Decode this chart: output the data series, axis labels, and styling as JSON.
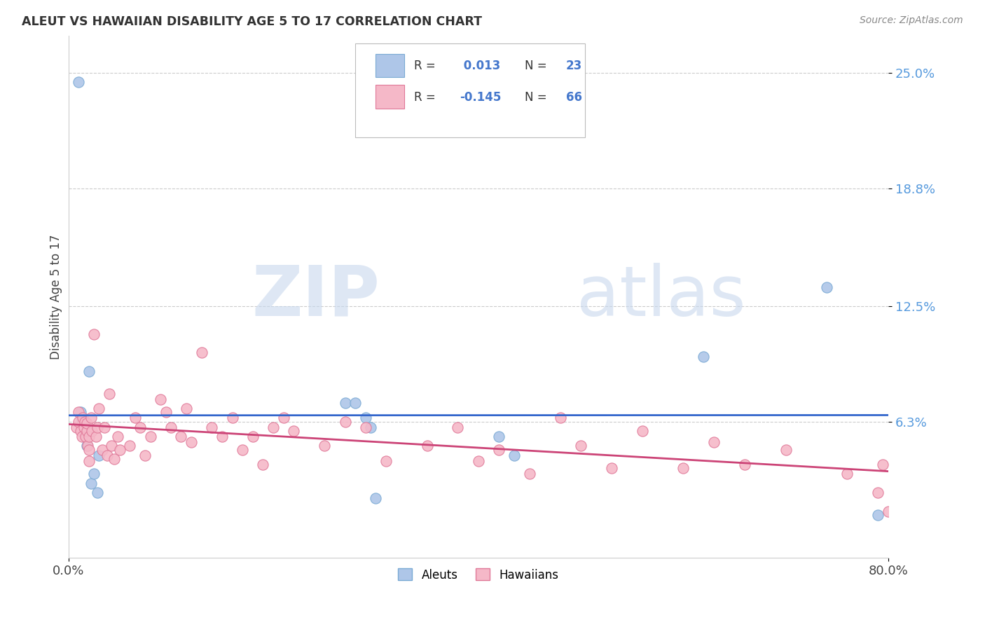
{
  "title": "ALEUT VS HAWAIIAN DISABILITY AGE 5 TO 17 CORRELATION CHART",
  "source": "Source: ZipAtlas.com",
  "ylabel": "Disability Age 5 to 17",
  "xmin": 0.0,
  "xmax": 0.8,
  "ymin": -0.01,
  "ymax": 0.27,
  "yticks": [
    0.063,
    0.125,
    0.188,
    0.25
  ],
  "ytick_labels": [
    "6.3%",
    "12.5%",
    "18.8%",
    "25.0%"
  ],
  "watermark_zip": "ZIP",
  "watermark_atlas": "atlas",
  "aleut_color": "#aec6e8",
  "aleut_edge": "#7aaad4",
  "hawaiian_color": "#f5b8c8",
  "hawaiian_edge": "#e07898",
  "trendline_aleut_color": "#3366cc",
  "trendline_hawaiian_color": "#cc4477",
  "aleut_x": [
    0.01,
    0.012,
    0.013,
    0.014,
    0.015,
    0.016,
    0.017,
    0.018,
    0.02,
    0.022,
    0.025,
    0.028,
    0.03,
    0.27,
    0.28,
    0.29,
    0.295,
    0.3,
    0.42,
    0.435,
    0.62,
    0.74,
    0.79
  ],
  "aleut_y": [
    0.245,
    0.068,
    0.064,
    0.06,
    0.058,
    0.063,
    0.055,
    0.05,
    0.09,
    0.03,
    0.035,
    0.025,
    0.045,
    0.073,
    0.073,
    0.065,
    0.06,
    0.022,
    0.055,
    0.045,
    0.098,
    0.135,
    0.013
  ],
  "hawaiian_x": [
    0.008,
    0.01,
    0.01,
    0.012,
    0.013,
    0.014,
    0.015,
    0.016,
    0.017,
    0.018,
    0.018,
    0.019,
    0.02,
    0.02,
    0.02,
    0.022,
    0.023,
    0.025,
    0.027,
    0.028,
    0.03,
    0.033,
    0.035,
    0.038,
    0.04,
    0.042,
    0.045,
    0.048,
    0.05,
    0.06,
    0.065,
    0.07,
    0.075,
    0.08,
    0.09,
    0.095,
    0.1,
    0.11,
    0.115,
    0.12,
    0.13,
    0.14,
    0.15,
    0.16,
    0.17,
    0.18,
    0.19,
    0.2,
    0.21,
    0.22,
    0.25,
    0.27,
    0.29,
    0.31,
    0.35,
    0.38,
    0.4,
    0.42,
    0.45,
    0.48,
    0.5,
    0.53,
    0.56,
    0.6,
    0.63,
    0.66,
    0.7,
    0.76,
    0.79,
    0.795,
    0.8
  ],
  "hawaiian_y": [
    0.06,
    0.068,
    0.063,
    0.058,
    0.055,
    0.065,
    0.06,
    0.063,
    0.055,
    0.058,
    0.062,
    0.05,
    0.055,
    0.048,
    0.042,
    0.065,
    0.058,
    0.11,
    0.055,
    0.06,
    0.07,
    0.048,
    0.06,
    0.045,
    0.078,
    0.05,
    0.043,
    0.055,
    0.048,
    0.05,
    0.065,
    0.06,
    0.045,
    0.055,
    0.075,
    0.068,
    0.06,
    0.055,
    0.07,
    0.052,
    0.1,
    0.06,
    0.055,
    0.065,
    0.048,
    0.055,
    0.04,
    0.06,
    0.065,
    0.058,
    0.05,
    0.063,
    0.06,
    0.042,
    0.05,
    0.06,
    0.042,
    0.048,
    0.035,
    0.065,
    0.05,
    0.038,
    0.058,
    0.038,
    0.052,
    0.04,
    0.048,
    0.035,
    0.025,
    0.04,
    0.015
  ],
  "background_color": "#ffffff",
  "grid_color": "#cccccc",
  "figsize": [
    14.06,
    8.92
  ],
  "dpi": 100
}
